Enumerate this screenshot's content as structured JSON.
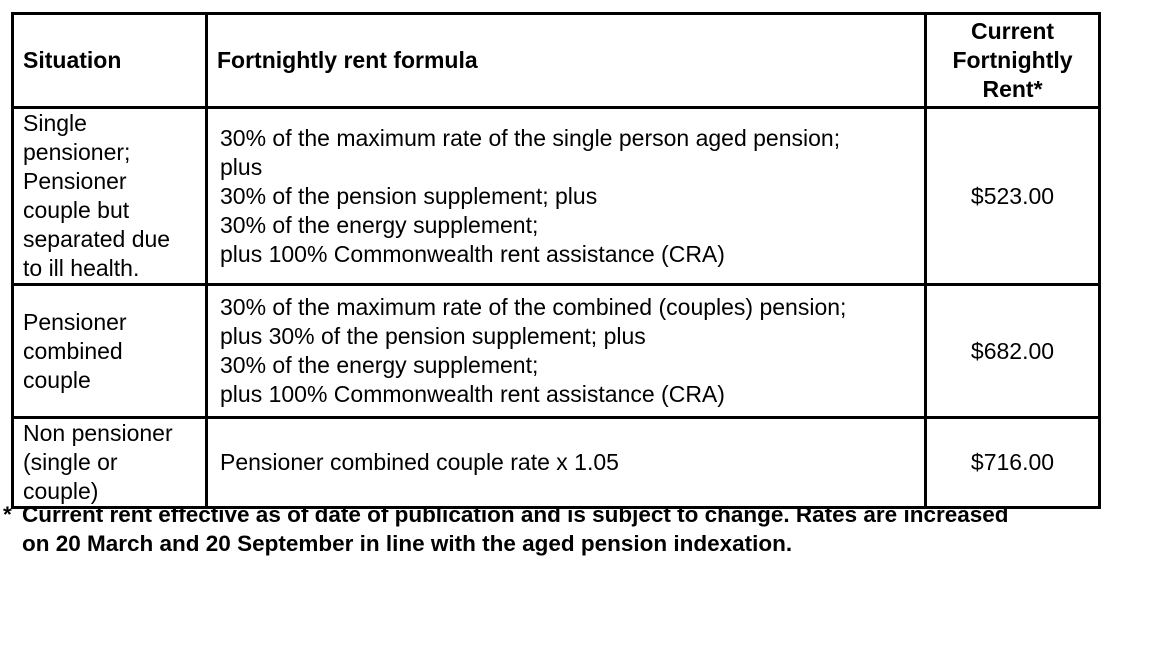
{
  "table": {
    "headers": {
      "situation": "Situation",
      "formula": "Fortnightly rent formula",
      "rent": "Current\nFortnightly\nRent*"
    },
    "rows": [
      {
        "situation": "Single\npensioner;\nPensioner\ncouple but\nseparated due\nto ill health.",
        "formula": "30% of the maximum rate of the single person aged pension;\nplus\n30% of the pension supplement; plus\n30% of the energy supplement;\nplus 100% Commonwealth rent assistance (CRA)",
        "rent": "$523.00"
      },
      {
        "situation": "Pensioner\ncombined\ncouple",
        "formula": "30% of the maximum rate of the combined (couples) pension;\nplus 30% of the pension supplement; plus\n30% of the energy supplement;\nplus 100% Commonwealth rent assistance (CRA)",
        "rent": "$682.00"
      },
      {
        "situation": "Non pensioner\n(single or\ncouple)",
        "formula": "Pensioner combined couple rate x 1.05",
        "rent": "$716.00"
      }
    ]
  },
  "footnote": {
    "marker": "*",
    "text": "Current rent effective as of date of publication and is subject to change. Rates are increased\non 20 March and 20 September in line with the aged pension indexation."
  }
}
